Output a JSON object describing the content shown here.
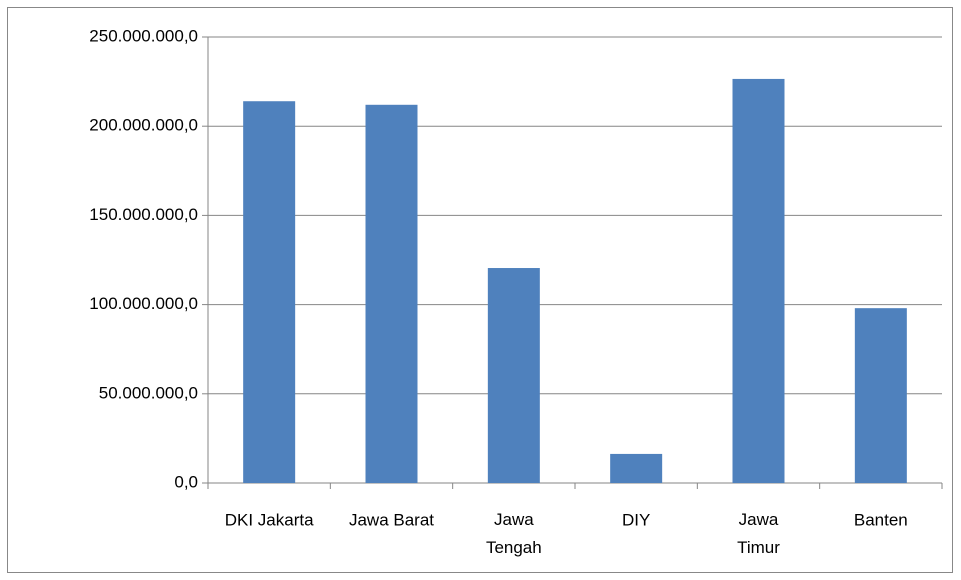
{
  "chart_data": {
    "type": "bar",
    "categories": [
      "DKI Jakarta",
      "Jawa Barat",
      "Jawa Tengah",
      "DIY",
      "Jawa Timur",
      "Banten"
    ],
    "values": [
      214000000,
      212000000,
      120500000,
      16300000,
      226500000,
      98000000
    ],
    "color": "#4f81bd",
    "ylim": [
      0,
      250000000
    ],
    "yticks": [
      {
        "value": 0,
        "label": "0,0"
      },
      {
        "value": 50000000,
        "label": "50.000.000,0"
      },
      {
        "value": 100000000,
        "label": "100.000.000,0"
      },
      {
        "value": 150000000,
        "label": "150.000.000,0"
      },
      {
        "value": 200000000,
        "label": "200.000.000,0"
      },
      {
        "value": 250000000,
        "label": "250.000.000,0"
      }
    ],
    "grid": true
  }
}
